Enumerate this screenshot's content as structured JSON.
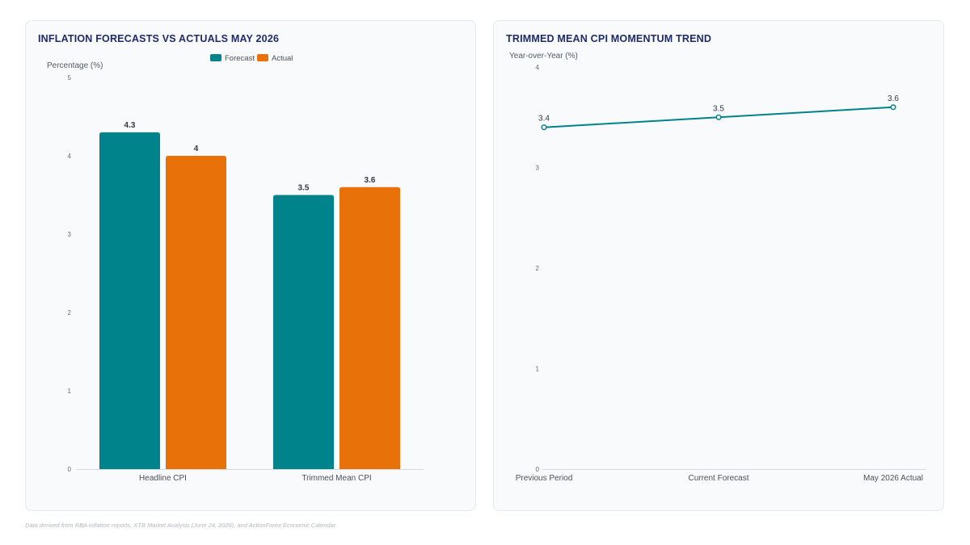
{
  "footer": "Data derived from RBA inflation reports, XTB Market Analysis (June 24, 2026), and ActionForex Economic Calendar.",
  "chart_data": [
    {
      "type": "bar",
      "title": "INFLATION FORECASTS VS ACTUALS MAY 2026",
      "ylabel": "Percentage (%)",
      "xlabel": "",
      "ylim": [
        0,
        5
      ],
      "yticks": [
        0,
        1,
        2,
        3,
        4,
        5
      ],
      "categories": [
        "Headline CPI",
        "Trimmed Mean CPI"
      ],
      "series": [
        {
          "name": "Forecast",
          "values": [
            4.3,
            3.5
          ],
          "color": "#00838a"
        },
        {
          "name": "Actual",
          "values": [
            4,
            3.6
          ],
          "color": "#e8710a"
        }
      ],
      "legend_position": "top-center",
      "grid": false,
      "data_labels": true
    },
    {
      "type": "line",
      "title": "TRIMMED MEAN CPI MOMENTUM TREND",
      "ylabel": "Year-over-Year (%)",
      "xlabel": "",
      "ylim": [
        0,
        4
      ],
      "yticks": [
        0,
        1,
        2,
        3,
        4
      ],
      "x": [
        "Previous Period",
        "Current Forecast",
        "May 2026 Actual"
      ],
      "series": [
        {
          "values": [
            3.4,
            3.5,
            3.6
          ],
          "color": "#00838a"
        }
      ],
      "grid": false,
      "data_labels": true
    }
  ]
}
